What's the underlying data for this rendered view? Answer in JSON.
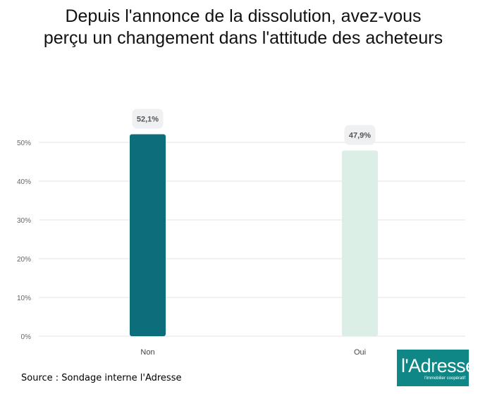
{
  "title_line1": "Depuis l'annonce de la dissolution, avez-vous",
  "title_line2": "perçu un changement dans l'attitude des acheteurs",
  "source": "Source : Sondage interne l'Adresse",
  "logo": {
    "text": "l'Adresse",
    "tagline": "l'immobilier coopératif"
  },
  "colors": {
    "non": "#0b6e7a",
    "oui": "#dcefe6",
    "grid": "#e3e3e3",
    "label_bg": "#eef0f2",
    "logo_bg": "#108787"
  },
  "chart_data": {
    "type": "bar",
    "categories": [
      "Non",
      "Oui"
    ],
    "values": [
      52.1,
      47.9
    ],
    "data_labels": [
      "52,1%",
      "47,9%"
    ],
    "ylim": [
      0,
      55
    ],
    "yticks": [
      0,
      10,
      20,
      30,
      40,
      50
    ],
    "ytick_labels": [
      "0%",
      "10%",
      "20%",
      "30%",
      "40%",
      "50%"
    ],
    "grid": true
  }
}
